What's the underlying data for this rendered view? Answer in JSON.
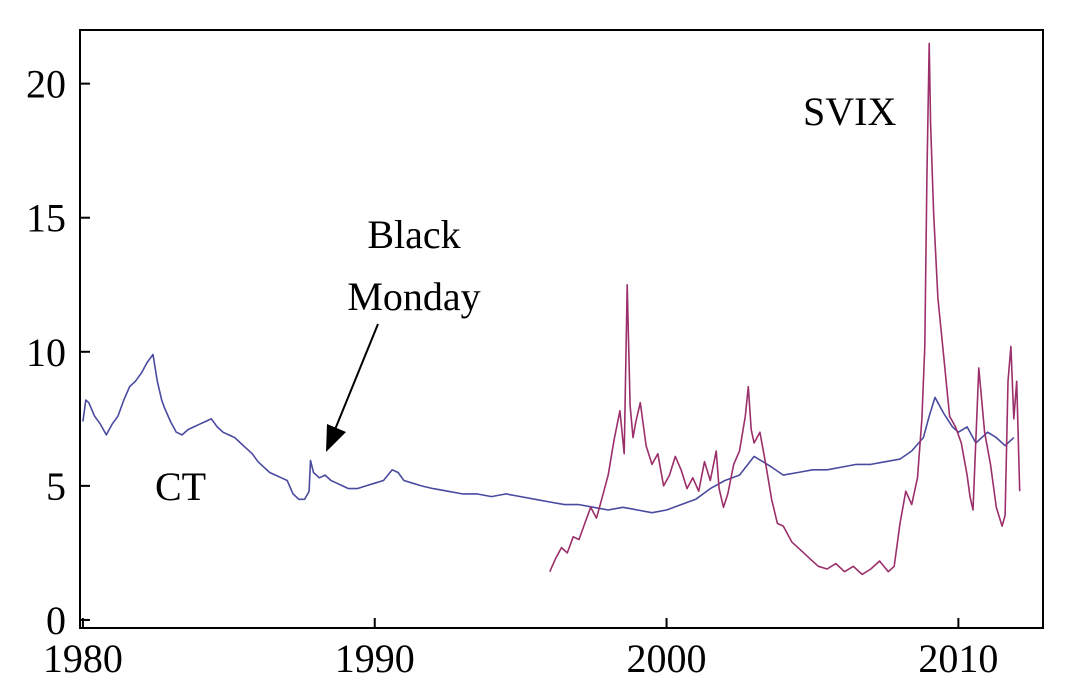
{
  "chart_data": {
    "type": "line",
    "title": "",
    "xlabel": "",
    "ylabel": "",
    "xlim": [
      1979.9,
      2012.9
    ],
    "ylim": [
      -0.3,
      22
    ],
    "grid": false,
    "legend": "none",
    "x_ticks": [
      {
        "value": 1980,
        "label": "1980"
      },
      {
        "value": 1990,
        "label": "1990"
      },
      {
        "value": 2000,
        "label": "2000"
      },
      {
        "value": 2010,
        "label": "2010"
      }
    ],
    "y_ticks": [
      {
        "value": 0,
        "label": "0"
      },
      {
        "value": 5,
        "label": "5"
      },
      {
        "value": 10,
        "label": "10"
      },
      {
        "value": 15,
        "label": "15"
      },
      {
        "value": 20,
        "label": "20"
      }
    ],
    "series": [
      {
        "key": "ct",
        "color": "#4a4aa0",
        "x": [
          1980.0,
          1980.1,
          1980.2,
          1980.4,
          1980.6,
          1980.8,
          1981.0,
          1981.2,
          1981.4,
          1981.6,
          1981.8,
          1982.0,
          1982.2,
          1982.4,
          1982.55,
          1982.7,
          1982.8,
          1983.0,
          1983.2,
          1983.4,
          1983.6,
          1983.8,
          1984.0,
          1984.2,
          1984.4,
          1984.6,
          1984.8,
          1985.0,
          1985.2,
          1985.4,
          1985.6,
          1985.8,
          1986.0,
          1986.2,
          1986.4,
          1986.6,
          1986.8,
          1987.0,
          1987.2,
          1987.4,
          1987.6,
          1987.75,
          1987.8,
          1987.9,
          1988.1,
          1988.3,
          1988.5,
          1988.7,
          1988.9,
          1989.1,
          1989.4,
          1989.7,
          1990.0,
          1990.3,
          1990.6,
          1990.8,
          1991.0,
          1991.3,
          1991.6,
          1992.0,
          1992.5,
          1993.0,
          1993.5,
          1994.0,
          1994.5,
          1995.0,
          1995.5,
          1996.0,
          1996.5,
          1997.0,
          1997.5,
          1998.0,
          1998.5,
          1999.0,
          1999.5,
          2000.0,
          2000.5,
          2001.0,
          2001.5,
          2002.0,
          2002.5,
          2003.0,
          2003.3,
          2003.6,
          2004.0,
          2004.5,
          2005.0,
          2005.5,
          2006.0,
          2006.5,
          2007.0,
          2007.5,
          2008.0,
          2008.4,
          2008.8,
          2009.0,
          2009.2,
          2009.5,
          2009.8,
          2010.0,
          2010.3,
          2010.6,
          2011.0,
          2011.3,
          2011.6,
          2011.9
        ],
        "y": [
          7.4,
          8.2,
          8.1,
          7.6,
          7.3,
          6.9,
          7.3,
          7.6,
          8.2,
          8.7,
          8.9,
          9.2,
          9.6,
          9.9,
          8.9,
          8.2,
          7.9,
          7.4,
          7.0,
          6.9,
          7.1,
          7.2,
          7.3,
          7.4,
          7.5,
          7.2,
          7.0,
          6.9,
          6.8,
          6.6,
          6.4,
          6.2,
          5.9,
          5.7,
          5.5,
          5.4,
          5.3,
          5.2,
          4.7,
          4.5,
          4.5,
          4.8,
          5.95,
          5.5,
          5.3,
          5.4,
          5.2,
          5.1,
          5.0,
          4.9,
          4.9,
          5.0,
          5.1,
          5.2,
          5.6,
          5.5,
          5.2,
          5.1,
          5.0,
          4.9,
          4.8,
          4.7,
          4.7,
          4.6,
          4.7,
          4.6,
          4.5,
          4.4,
          4.3,
          4.3,
          4.2,
          4.1,
          4.2,
          4.1,
          4.0,
          4.1,
          4.3,
          4.5,
          4.9,
          5.2,
          5.4,
          6.1,
          5.9,
          5.7,
          5.4,
          5.5,
          5.6,
          5.6,
          5.7,
          5.8,
          5.8,
          5.9,
          6.0,
          6.3,
          6.8,
          7.6,
          8.3,
          7.7,
          7.2,
          7.0,
          7.2,
          6.6,
          7.0,
          6.8,
          6.5,
          6.8
        ]
      },
      {
        "key": "svix",
        "color": "#9b2f6a",
        "x": [
          1996.0,
          1996.2,
          1996.4,
          1996.6,
          1996.8,
          1997.0,
          1997.2,
          1997.4,
          1997.6,
          1997.8,
          1998.0,
          1998.2,
          1998.4,
          1998.55,
          1998.65,
          1998.75,
          1998.85,
          1998.95,
          1999.1,
          1999.3,
          1999.5,
          1999.7,
          1999.9,
          2000.1,
          2000.3,
          2000.5,
          2000.7,
          2000.9,
          2001.1,
          2001.3,
          2001.5,
          2001.7,
          2001.8,
          2001.95,
          2002.1,
          2002.3,
          2002.5,
          2002.7,
          2002.8,
          2002.9,
          2003.0,
          2003.2,
          2003.4,
          2003.6,
          2003.8,
          2004.0,
          2004.3,
          2004.6,
          2004.9,
          2005.2,
          2005.5,
          2005.8,
          2006.1,
          2006.4,
          2006.7,
          2007.0,
          2007.3,
          2007.6,
          2007.8,
          2008.0,
          2008.2,
          2008.4,
          2008.6,
          2008.75,
          2008.85,
          2008.92,
          2009.0,
          2009.05,
          2009.15,
          2009.3,
          2009.5,
          2009.7,
          2009.9,
          2010.1,
          2010.3,
          2010.4,
          2010.5,
          2010.7,
          2010.9,
          2011.1,
          2011.3,
          2011.5,
          2011.6,
          2011.7,
          2011.8,
          2011.9,
          2012.0,
          2012.1
        ],
        "y": [
          1.8,
          2.3,
          2.7,
          2.5,
          3.1,
          3.0,
          3.6,
          4.2,
          3.8,
          4.6,
          5.4,
          6.7,
          7.8,
          6.2,
          12.5,
          8.0,
          6.8,
          7.4,
          8.1,
          6.5,
          5.8,
          6.2,
          5.0,
          5.4,
          6.1,
          5.6,
          4.9,
          5.3,
          4.8,
          5.9,
          5.2,
          6.3,
          4.9,
          4.2,
          4.7,
          5.8,
          6.3,
          7.6,
          8.7,
          7.1,
          6.6,
          7.0,
          5.8,
          4.5,
          3.6,
          3.5,
          2.9,
          2.6,
          2.3,
          2.0,
          1.9,
          2.1,
          1.8,
          2.0,
          1.7,
          1.9,
          2.2,
          1.8,
          2.0,
          3.6,
          4.8,
          4.3,
          5.3,
          7.5,
          10.2,
          16.5,
          21.5,
          18.5,
          15.2,
          12.0,
          9.8,
          7.6,
          7.2,
          6.6,
          5.4,
          4.6,
          4.1,
          9.4,
          7.0,
          5.8,
          4.2,
          3.5,
          3.9,
          8.9,
          10.2,
          7.5,
          8.9,
          4.8
        ]
      }
    ],
    "annotations": [
      {
        "key": "svix",
        "text": "SVIX"
      },
      {
        "key": "ct",
        "text": "CT"
      },
      {
        "key": "black_monday",
        "lines": [
          "Black",
          "Monday"
        ]
      }
    ]
  }
}
